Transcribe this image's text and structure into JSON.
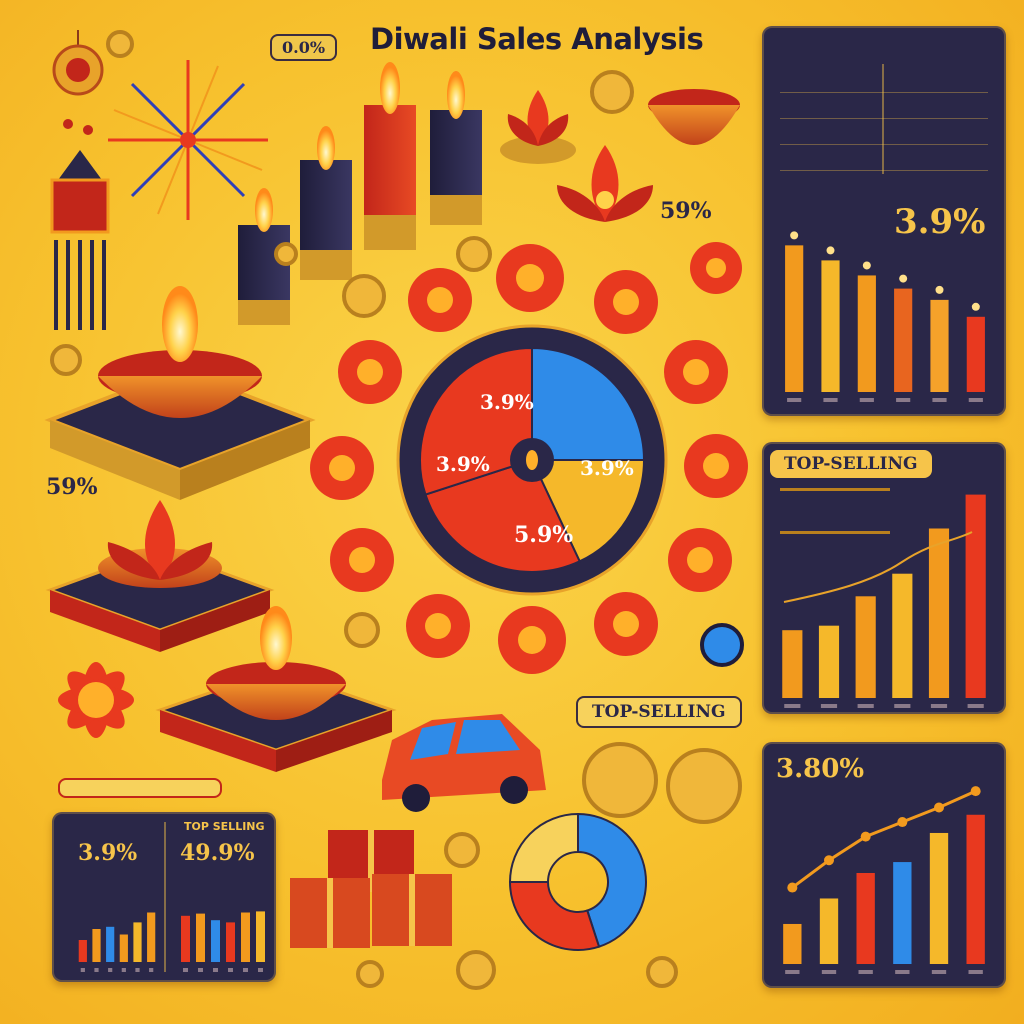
{
  "title": "Diwali Sales Analysis",
  "header_tag": "0.0%",
  "colors": {
    "navy": "#2a2748",
    "gold": "#f6c44a",
    "orange": "#f29a1e",
    "red": "#e8391f",
    "blue": "#2f8be8",
    "yellow": "#f7d25c"
  },
  "icons": [
    "diya-icon",
    "candle-icon",
    "firework-icon",
    "lotus-icon",
    "flower-icon",
    "lantern-icon",
    "coin-icon",
    "gift-icon",
    "car-icon"
  ],
  "labels": {
    "pct_mid_right": "59%",
    "pct_left": "59%",
    "top_selling_right": "TOP-SELLING",
    "top_selling_center": "TOP-SELLING",
    "bottom_left_tag": "TOP SELLING"
  },
  "chart_data": [
    {
      "id": "pie-center",
      "type": "pie",
      "slices": [
        {
          "label": "3.9%",
          "value": 25,
          "color": "#2f8be8"
        },
        {
          "label": "",
          "value": 18,
          "color": "#f5b82a"
        },
        {
          "label": "3.9%",
          "value": 27,
          "color": "#e8391f"
        },
        {
          "label": "5.9%",
          "value": 30,
          "color": "#e8391f"
        }
      ],
      "blue_label": "3.9%",
      "left_label": "3.9%",
      "right_label": "3.9%",
      "bottom_label": "5.9%"
    },
    {
      "id": "top-right-bars",
      "type": "bar",
      "headline": "3.9%",
      "values": [
        78,
        70,
        62,
        55,
        49,
        40
      ],
      "ylim": [
        0,
        100
      ]
    },
    {
      "id": "mid-right-bars",
      "type": "bar",
      "title": "TOP-SELLING",
      "values": [
        30,
        32,
        45,
        55,
        75,
        90
      ],
      "ylim": [
        0,
        100
      ]
    },
    {
      "id": "bottom-right-bars",
      "type": "bar",
      "headline": "3.80%",
      "values": [
        22,
        36,
        50,
        56,
        72,
        82
      ],
      "line": [
        42,
        57,
        70,
        78,
        86,
        95
      ],
      "ylim": [
        0,
        100
      ]
    },
    {
      "id": "bottom-left-bars-a",
      "type": "bar",
      "headline": "3.9%",
      "values": [
        20,
        30,
        32,
        25,
        36,
        45
      ],
      "ylim": [
        0,
        100
      ]
    },
    {
      "id": "bottom-left-bars-b",
      "type": "bar",
      "headline": "49.9%",
      "title": "TOP SELLING",
      "values": [
        42,
        44,
        38,
        36,
        45,
        46
      ],
      "ylim": [
        0,
        100
      ]
    },
    {
      "id": "donut-bottom",
      "type": "pie",
      "slices": [
        {
          "label": "",
          "value": 45,
          "color": "#2f8be8"
        },
        {
          "label": "",
          "value": 30,
          "color": "#e8391f"
        },
        {
          "label": "",
          "value": 25,
          "color": "#f7d25c"
        }
      ]
    }
  ]
}
